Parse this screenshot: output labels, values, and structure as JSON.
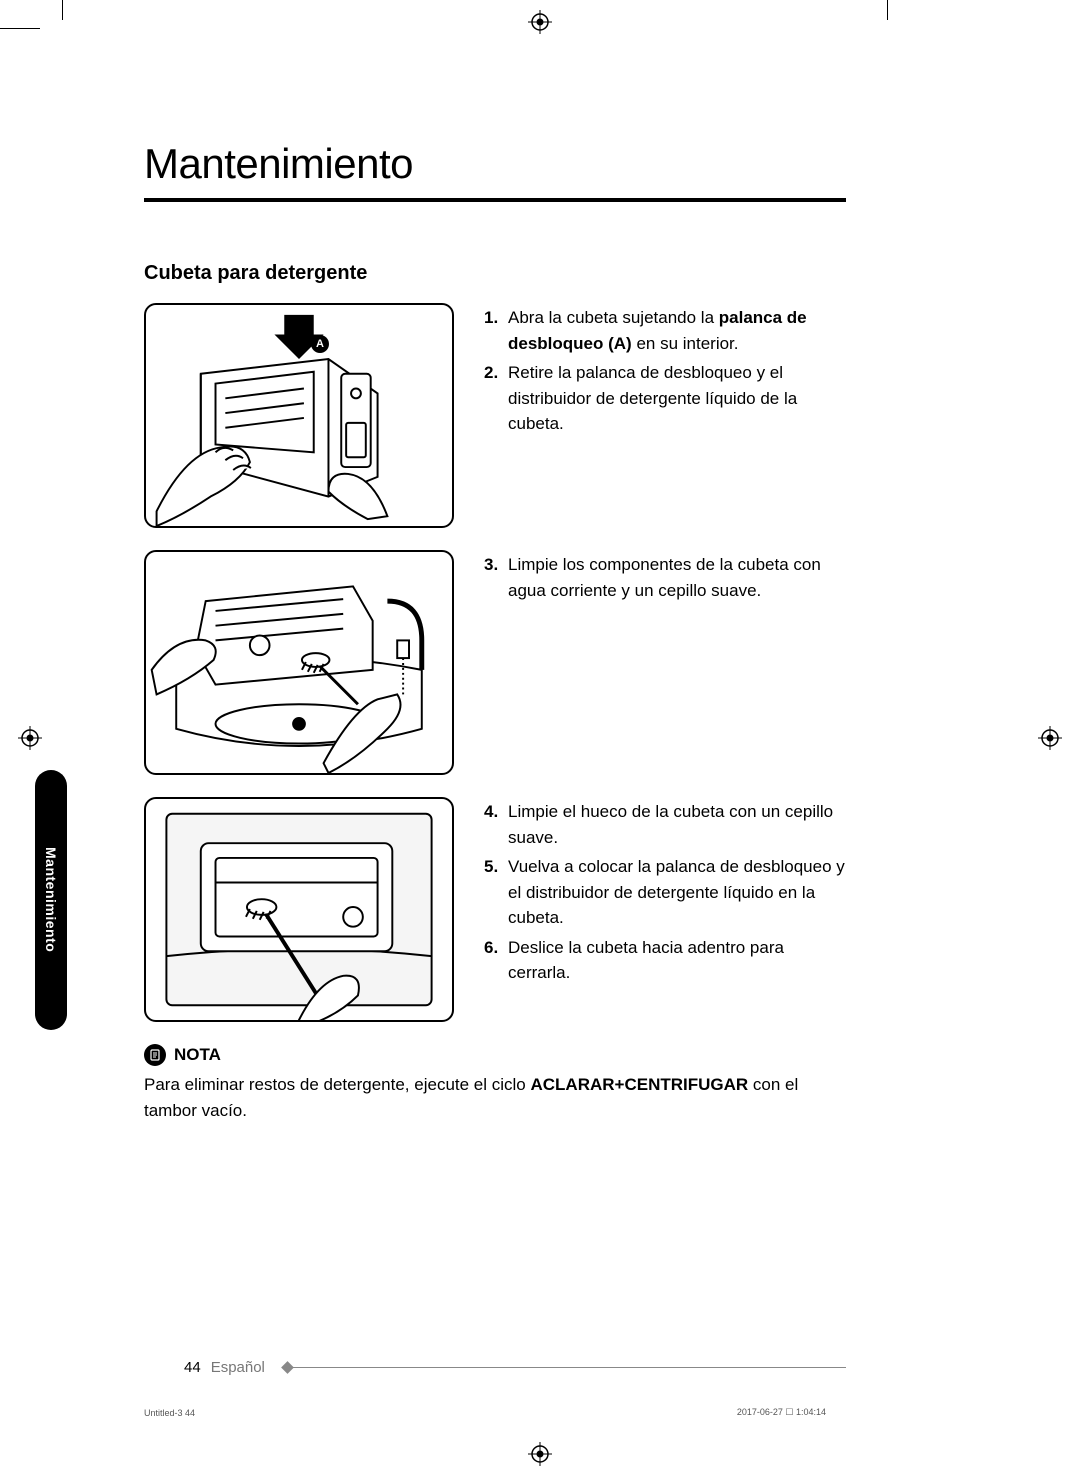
{
  "title": "Mantenimiento",
  "subtitle": "Cubeta para detergente",
  "sideTab": "Mantenimiento",
  "figureLabel": "A",
  "steps": {
    "block1": [
      {
        "num": "1.",
        "pre": "Abra la cubeta sujetando la ",
        "bold": "palanca de desbloqueo (A)",
        "post": " en su interior."
      },
      {
        "num": "2.",
        "pre": "Retire la palanca de desbloqueo y el distribuidor de detergente líquido de la cubeta.",
        "bold": "",
        "post": ""
      }
    ],
    "block2": [
      {
        "num": "3.",
        "pre": "Limpie los componentes de la cubeta con agua corriente y un cepillo suave.",
        "bold": "",
        "post": ""
      }
    ],
    "block3": [
      {
        "num": "4.",
        "pre": "Limpie el hueco de la cubeta con un cepillo suave.",
        "bold": "",
        "post": ""
      },
      {
        "num": "5.",
        "pre": "Vuelva a colocar la palanca de desbloqueo y el distribuidor de detergente líquido en la cubeta.",
        "bold": "",
        "post": ""
      },
      {
        "num": "6.",
        "pre": "Deslice la cubeta hacia adentro para cerrarla.",
        "bold": "",
        "post": ""
      }
    ]
  },
  "note": {
    "label": "NOTA",
    "pre": "Para eliminar restos de detergente, ejecute el ciclo ",
    "bold": "ACLARAR+CENTRIFUGAR",
    "post": " con el tambor vacío."
  },
  "footer": {
    "page": "44",
    "lang": "Español"
  },
  "meta": {
    "left": "Untitled-3   44",
    "right": "2017-06-27   ☐ 1:04:14"
  },
  "colors": {
    "text": "#000000",
    "muted": "#777777",
    "line": "#888888"
  }
}
